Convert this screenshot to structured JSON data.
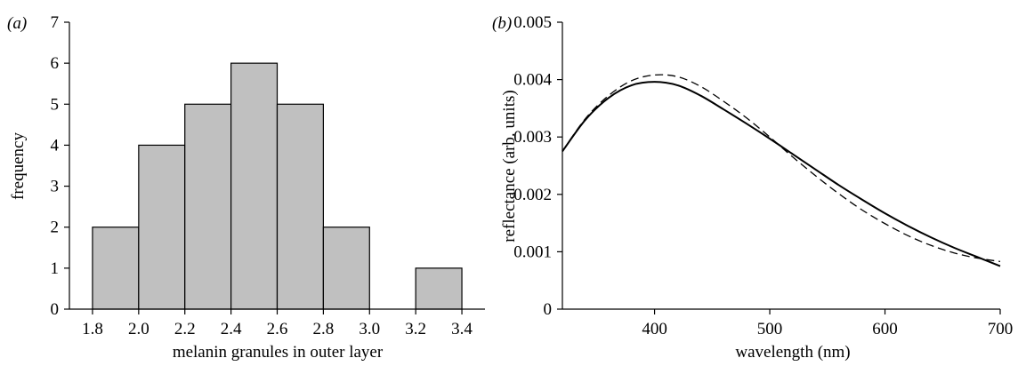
{
  "chart_data": [
    {
      "panel_label": "(a)",
      "type": "bar",
      "xlabel": "melanin granules in outer layer",
      "ylabel": "frequency",
      "bin_edges": [
        1.8,
        2.0,
        2.2,
        2.4,
        2.6,
        2.8,
        3.0,
        3.2,
        3.4
      ],
      "values": [
        2,
        4,
        5,
        6,
        5,
        2,
        0,
        1
      ],
      "xlim": [
        1.7,
        3.5
      ],
      "ylim": [
        0,
        7
      ],
      "xticks": [
        "1.8",
        "2.0",
        "2.2",
        "2.4",
        "2.6",
        "2.8",
        "3.0",
        "3.2",
        "3.4"
      ],
      "yticks": [
        "0",
        "1",
        "2",
        "3",
        "4",
        "5",
        "6",
        "7"
      ],
      "bar_color": "#c0c0c0",
      "grid": false
    },
    {
      "panel_label": "(b)",
      "type": "line",
      "xlabel": "wavelength (nm)",
      "ylabel": "reflectance (arb. units)",
      "xlim": [
        320,
        700
      ],
      "ylim": [
        0,
        0.005
      ],
      "xticks": [
        "400",
        "500",
        "600",
        "700"
      ],
      "yticks": [
        "0",
        "0.001",
        "0.002",
        "0.003",
        "0.004",
        "0.005"
      ],
      "grid": false,
      "series": [
        {
          "style": "solid",
          "x": [
            320,
            340,
            360,
            380,
            400,
            420,
            440,
            460,
            480,
            500,
            520,
            540,
            560,
            580,
            600,
            620,
            640,
            660,
            680,
            700
          ],
          "y": [
            0.00275,
            0.0033,
            0.00368,
            0.0039,
            0.00396,
            0.0039,
            0.00372,
            0.00348,
            0.00323,
            0.00297,
            0.0027,
            0.00243,
            0.00216,
            0.00191,
            0.00167,
            0.00145,
            0.00125,
            0.00107,
            0.00091,
            0.00075
          ]
        },
        {
          "style": "dashed",
          "x": [
            320,
            340,
            360,
            380,
            400,
            420,
            440,
            460,
            480,
            500,
            520,
            540,
            560,
            580,
            600,
            620,
            640,
            660,
            680,
            700
          ],
          "y": [
            0.00275,
            0.00332,
            0.00372,
            0.00398,
            0.00408,
            0.00405,
            0.00388,
            0.00362,
            0.00333,
            0.003,
            0.00265,
            0.00232,
            0.00201,
            0.00173,
            0.00149,
            0.00128,
            0.00111,
            0.00098,
            0.00089,
            0.00083
          ]
        }
      ]
    }
  ]
}
